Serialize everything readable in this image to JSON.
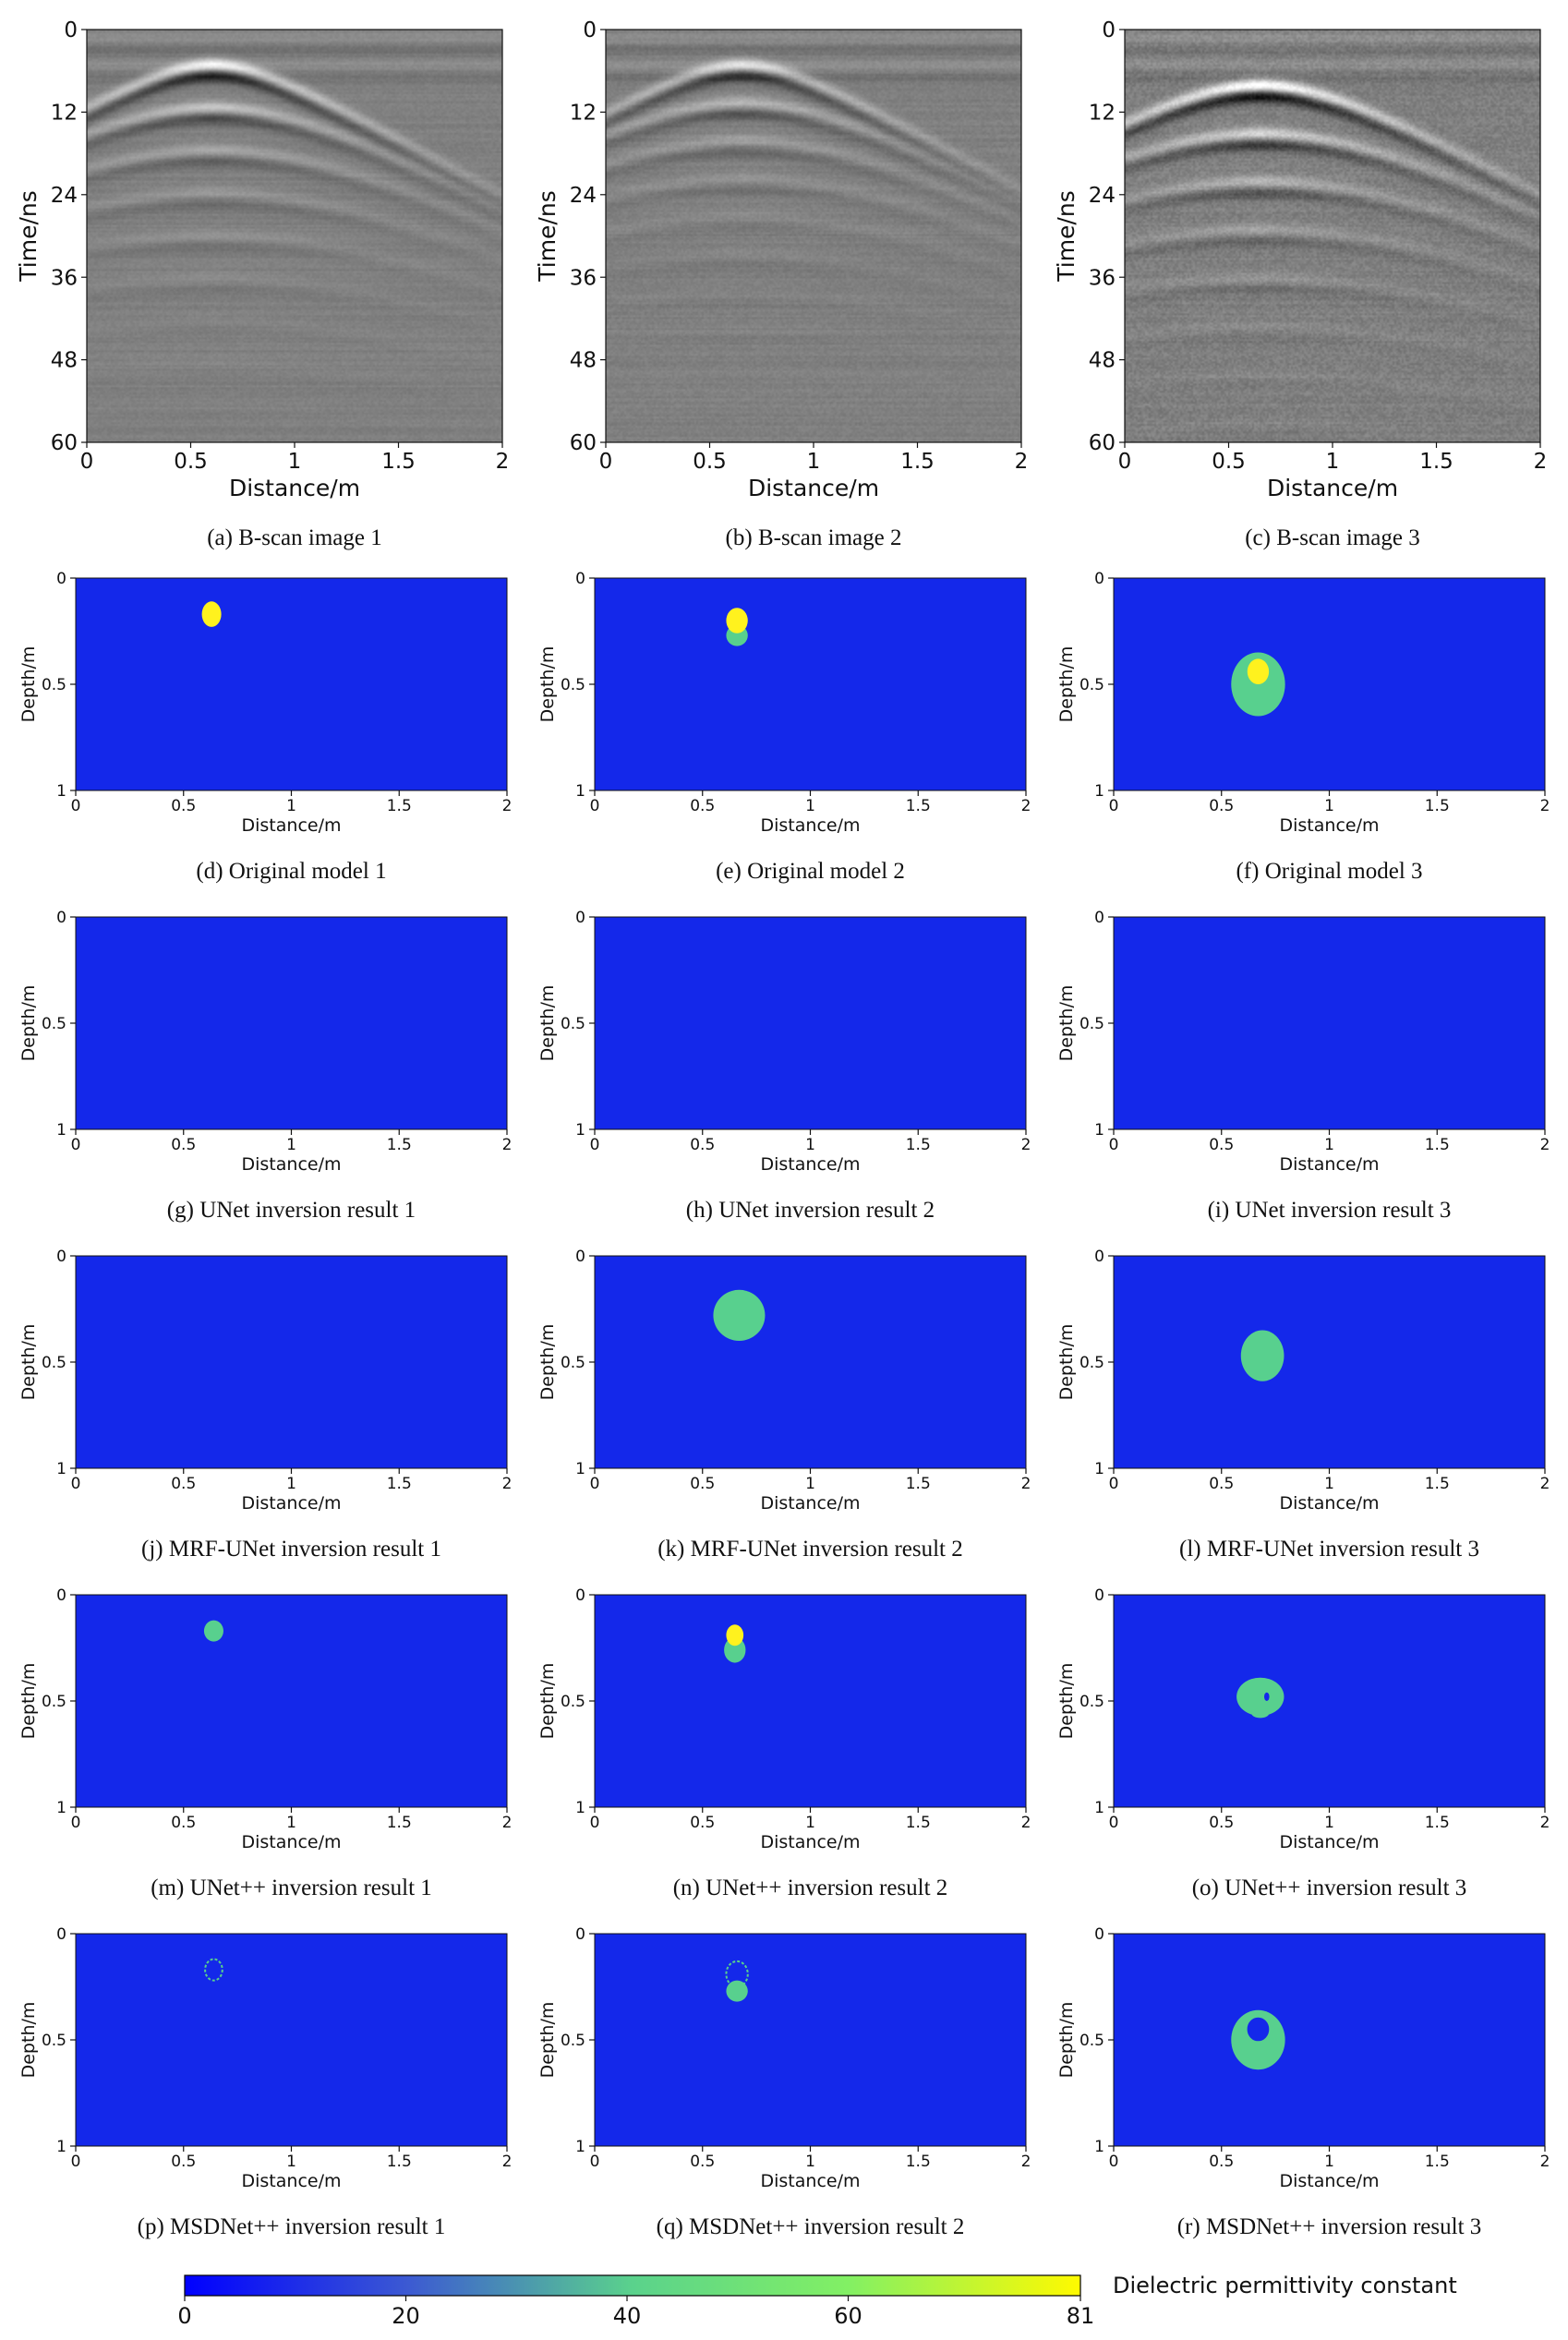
{
  "figure": {
    "colorbar": {
      "label": "Dielectric permittivity constant",
      "ticks": [
        0,
        20,
        40,
        60,
        81
      ],
      "min": 0,
      "max": 81,
      "colors": [
        "#0000ff",
        "#3c5ad2",
        "#5ad28c",
        "#82f064",
        "#fffa00"
      ]
    },
    "colors": {
      "background_eps": 5,
      "background": "#1428ea",
      "inclusion_green": "#58d08e",
      "inclusion_yellow": "#fff21e"
    }
  },
  "chart_data": [
    {
      "id": "a",
      "type": "heatmap",
      "kind": "bscan",
      "caption": "(a) B-scan image 1",
      "xlabel": "Distance/m",
      "ylabel": "Time/ns",
      "xlim": [
        0,
        2
      ],
      "ylim": [
        60,
        0
      ],
      "xticks": [
        "0",
        "0.5",
        "1",
        "1.5",
        "2"
      ],
      "yticks": [
        "0",
        "12",
        "24",
        "36",
        "48",
        "60"
      ],
      "hyperbola": {
        "apex_x": 0.6,
        "apex_t": 5,
        "n_reflections": 5,
        "spacing_t": 6.2,
        "strength": 1.0,
        "noise": 0.1
      }
    },
    {
      "id": "b",
      "type": "heatmap",
      "kind": "bscan",
      "caption": "(b) B-scan image 2",
      "xlabel": "Distance/m",
      "ylabel": "Time/ns",
      "xlim": [
        0,
        2
      ],
      "ylim": [
        60,
        0
      ],
      "xticks": [
        "0",
        "0.5",
        "1",
        "1.5",
        "2"
      ],
      "yticks": [
        "0",
        "12",
        "24",
        "36",
        "48",
        "60"
      ],
      "hyperbola": {
        "apex_x": 0.65,
        "apex_t": 5,
        "n_reflections": 4,
        "spacing_t": 5.5,
        "strength": 0.8,
        "noise": 0.12
      }
    },
    {
      "id": "c",
      "type": "heatmap",
      "kind": "bscan",
      "caption": "(c) B-scan image 3",
      "xlabel": "Distance/m",
      "ylabel": "Time/ns",
      "xlim": [
        0,
        2
      ],
      "ylim": [
        60,
        0
      ],
      "xticks": [
        "0",
        "0.5",
        "1",
        "1.5",
        "2"
      ],
      "yticks": [
        "0",
        "12",
        "24",
        "36",
        "48",
        "60"
      ],
      "hyperbola": {
        "apex_x": 0.65,
        "apex_t": 8,
        "n_reflections": 4,
        "spacing_t": 7,
        "strength": 1.3,
        "noise": 0.22
      }
    },
    {
      "id": "d",
      "type": "heatmap",
      "kind": "model",
      "caption": "(d) Original model 1",
      "xlabel": "Distance/m",
      "ylabel": "Depth/m",
      "xlim": [
        0,
        2
      ],
      "ylim": [
        1,
        0
      ],
      "xticks": [
        "0",
        "0.5",
        "1",
        "1.5",
        "2"
      ],
      "yticks": [
        "0",
        "0.5",
        "1"
      ],
      "background_eps": 5,
      "inclusions": [
        {
          "x": 0.63,
          "depth": 0.17,
          "rx": 0.045,
          "ry": 0.06,
          "eps": 81
        }
      ]
    },
    {
      "id": "e",
      "type": "heatmap",
      "kind": "model",
      "caption": "(e) Original model 2",
      "xlabel": "Distance/m",
      "ylabel": "Depth/m",
      "xlim": [
        0,
        2
      ],
      "ylim": [
        1,
        0
      ],
      "xticks": [
        "0",
        "0.5",
        "1",
        "1.5",
        "2"
      ],
      "yticks": [
        "0",
        "0.5",
        "1"
      ],
      "background_eps": 5,
      "inclusions": [
        {
          "x": 0.66,
          "depth": 0.27,
          "rx": 0.05,
          "ry": 0.05,
          "eps": 40
        },
        {
          "x": 0.66,
          "depth": 0.2,
          "rx": 0.05,
          "ry": 0.06,
          "eps": 81
        }
      ]
    },
    {
      "id": "f",
      "type": "heatmap",
      "kind": "model",
      "caption": "(f) Original model 3",
      "xlabel": "Distance/m",
      "ylabel": "Depth/m",
      "xlim": [
        0,
        2
      ],
      "ylim": [
        1,
        0
      ],
      "xticks": [
        "0",
        "0.5",
        "1",
        "1.5",
        "2"
      ],
      "yticks": [
        "0",
        "0.5",
        "1"
      ],
      "background_eps": 5,
      "inclusions": [
        {
          "x": 0.67,
          "depth": 0.5,
          "rx": 0.125,
          "ry": 0.15,
          "eps": 40
        },
        {
          "x": 0.67,
          "depth": 0.44,
          "rx": 0.05,
          "ry": 0.06,
          "eps": 81
        }
      ]
    },
    {
      "id": "g",
      "type": "heatmap",
      "kind": "model",
      "caption": "(g) UNet inversion result 1",
      "xlabel": "Distance/m",
      "ylabel": "Depth/m",
      "xlim": [
        0,
        2
      ],
      "ylim": [
        1,
        0
      ],
      "xticks": [
        "0",
        "0.5",
        "1",
        "1.5",
        "2"
      ],
      "yticks": [
        "0",
        "0.5",
        "1"
      ],
      "background_eps": 5,
      "inclusions": []
    },
    {
      "id": "h",
      "type": "heatmap",
      "kind": "model",
      "caption": "(h) UNet inversion result 2",
      "xlabel": "Distance/m",
      "ylabel": "Depth/m",
      "xlim": [
        0,
        2
      ],
      "ylim": [
        1,
        0
      ],
      "xticks": [
        "0",
        "0.5",
        "1",
        "1.5",
        "2"
      ],
      "yticks": [
        "0",
        "0.5",
        "1"
      ],
      "background_eps": 5,
      "inclusions": []
    },
    {
      "id": "i",
      "type": "heatmap",
      "kind": "model",
      "caption": "(i) UNet inversion result 3",
      "xlabel": "Distance/m",
      "ylabel": "Depth/m",
      "xlim": [
        0,
        2
      ],
      "ylim": [
        1,
        0
      ],
      "xticks": [
        "0",
        "0.5",
        "1",
        "1.5",
        "2"
      ],
      "yticks": [
        "0",
        "0.5",
        "1"
      ],
      "background_eps": 5,
      "inclusions": []
    },
    {
      "id": "j",
      "type": "heatmap",
      "kind": "model",
      "caption": "(j) MRF-UNet inversion result 1",
      "xlabel": "Distance/m",
      "ylabel": "Depth/m",
      "xlim": [
        0,
        2
      ],
      "ylim": [
        1,
        0
      ],
      "xticks": [
        "0",
        "0.5",
        "1",
        "1.5",
        "2"
      ],
      "yticks": [
        "0",
        "0.5",
        "1"
      ],
      "background_eps": 5,
      "inclusions": []
    },
    {
      "id": "k",
      "type": "heatmap",
      "kind": "model",
      "caption": "(k) MRF-UNet inversion result 2",
      "xlabel": "Distance/m",
      "ylabel": "Depth/m",
      "xlim": [
        0,
        2
      ],
      "ylim": [
        1,
        0
      ],
      "xticks": [
        "0",
        "0.5",
        "1",
        "1.5",
        "2"
      ],
      "yticks": [
        "0",
        "0.5",
        "1"
      ],
      "background_eps": 5,
      "inclusions": [
        {
          "x": 0.67,
          "depth": 0.28,
          "rx": 0.12,
          "ry": 0.12,
          "eps": 40
        }
      ]
    },
    {
      "id": "l",
      "type": "heatmap",
      "kind": "model",
      "caption": "(l) MRF-UNet inversion result 3",
      "xlabel": "Distance/m",
      "ylabel": "Depth/m",
      "xlim": [
        0,
        2
      ],
      "ylim": [
        1,
        0
      ],
      "xticks": [
        "0",
        "0.5",
        "1",
        "1.5",
        "2"
      ],
      "yticks": [
        "0",
        "0.5",
        "1"
      ],
      "background_eps": 5,
      "inclusions": [
        {
          "x": 0.69,
          "depth": 0.47,
          "rx": 0.1,
          "ry": 0.12,
          "eps": 40
        }
      ]
    },
    {
      "id": "m",
      "type": "heatmap",
      "kind": "model",
      "caption": "(m) UNet++ inversion result 1",
      "xlabel": "Distance/m",
      "ylabel": "Depth/m",
      "xlim": [
        0,
        2
      ],
      "ylim": [
        1,
        0
      ],
      "xticks": [
        "0",
        "0.5",
        "1",
        "1.5",
        "2"
      ],
      "yticks": [
        "0",
        "0.5",
        "1"
      ],
      "background_eps": 5,
      "inclusions": [
        {
          "x": 0.64,
          "depth": 0.17,
          "rx": 0.045,
          "ry": 0.05,
          "eps": 40
        }
      ]
    },
    {
      "id": "n",
      "type": "heatmap",
      "kind": "model",
      "caption": "(n) UNet++ inversion result 2",
      "xlabel": "Distance/m",
      "ylabel": "Depth/m",
      "xlim": [
        0,
        2
      ],
      "ylim": [
        1,
        0
      ],
      "xticks": [
        "0",
        "0.5",
        "1",
        "1.5",
        "2"
      ],
      "yticks": [
        "0",
        "0.5",
        "1"
      ],
      "background_eps": 5,
      "inclusions": [
        {
          "x": 0.65,
          "depth": 0.26,
          "rx": 0.05,
          "ry": 0.06,
          "eps": 40
        },
        {
          "x": 0.65,
          "depth": 0.19,
          "rx": 0.04,
          "ry": 0.05,
          "eps": 81
        }
      ]
    },
    {
      "id": "o",
      "type": "heatmap",
      "kind": "model",
      "caption": "(o) UNet++ inversion result 3",
      "xlabel": "Distance/m",
      "ylabel": "Depth/m",
      "xlim": [
        0,
        2
      ],
      "ylim": [
        1,
        0
      ],
      "xticks": [
        "0",
        "0.5",
        "1",
        "1.5",
        "2"
      ],
      "yticks": [
        "0",
        "0.5",
        "1"
      ],
      "background_eps": 5,
      "inclusions": [
        {
          "x": 0.68,
          "depth": 0.48,
          "rx": 0.11,
          "ry": 0.09,
          "eps": 40
        },
        {
          "x": 0.71,
          "depth": 0.48,
          "rx": 0.012,
          "ry": 0.02,
          "eps": 5
        },
        {
          "x": 0.68,
          "depth": 0.56,
          "rx": 0.04,
          "ry": 0.02,
          "eps": 40
        }
      ]
    },
    {
      "id": "p",
      "type": "heatmap",
      "kind": "model",
      "caption": "(p) MSDNet++ inversion result 1",
      "xlabel": "Distance/m",
      "ylabel": "Depth/m",
      "xlim": [
        0,
        2
      ],
      "ylim": [
        1,
        0
      ],
      "xticks": [
        "0",
        "0.5",
        "1",
        "1.5",
        "2"
      ],
      "yticks": [
        "0",
        "0.5",
        "1"
      ],
      "background_eps": 5,
      "inclusions": [
        {
          "x": 0.64,
          "depth": 0.17,
          "rx": 0.04,
          "ry": 0.05,
          "eps": 40,
          "ring": true
        }
      ]
    },
    {
      "id": "q",
      "type": "heatmap",
      "kind": "model",
      "caption": "(q) MSDNet++ inversion result 2",
      "xlabel": "Distance/m",
      "ylabel": "Depth/m",
      "xlim": [
        0,
        2
      ],
      "ylim": [
        1,
        0
      ],
      "xticks": [
        "0",
        "0.5",
        "1",
        "1.5",
        "2"
      ],
      "yticks": [
        "0",
        "0.5",
        "1"
      ],
      "background_eps": 5,
      "inclusions": [
        {
          "x": 0.66,
          "depth": 0.27,
          "rx": 0.05,
          "ry": 0.05,
          "eps": 40
        },
        {
          "x": 0.66,
          "depth": 0.19,
          "rx": 0.05,
          "ry": 0.06,
          "eps": 40,
          "ring": true
        }
      ]
    },
    {
      "id": "r",
      "type": "heatmap",
      "kind": "model",
      "caption": "(r) MSDNet++ inversion result 3",
      "xlabel": "Distance/m",
      "ylabel": "Depth/m",
      "xlim": [
        0,
        2
      ],
      "ylim": [
        1,
        0
      ],
      "xticks": [
        "0",
        "0.5",
        "1",
        "1.5",
        "2"
      ],
      "yticks": [
        "0",
        "0.5",
        "1"
      ],
      "background_eps": 5,
      "inclusions": [
        {
          "x": 0.67,
          "depth": 0.5,
          "rx": 0.125,
          "ry": 0.14,
          "eps": 40
        },
        {
          "x": 0.67,
          "depth": 0.45,
          "rx": 0.055,
          "ry": 0.06,
          "eps": 5,
          "outline_eps": 40
        }
      ]
    }
  ]
}
